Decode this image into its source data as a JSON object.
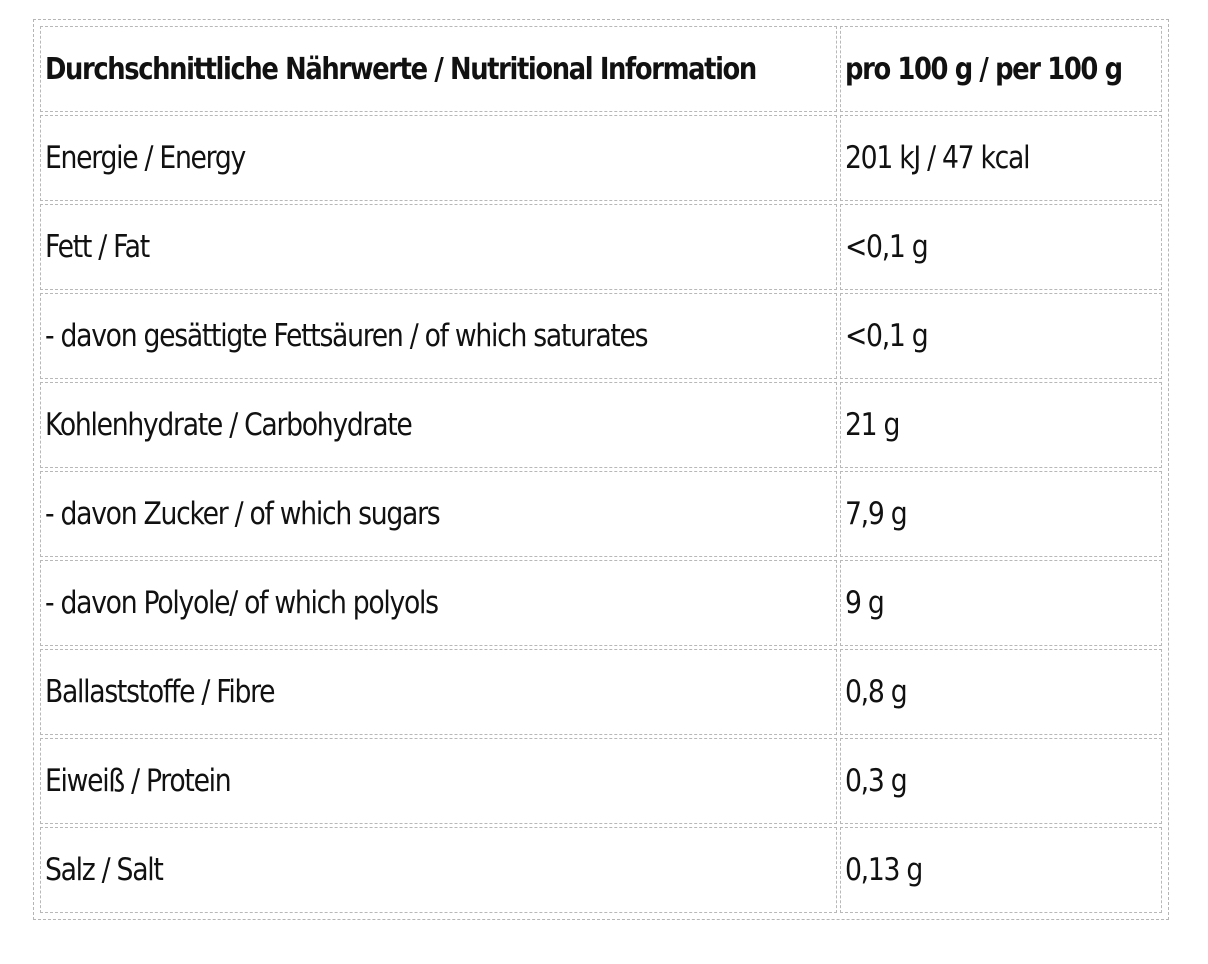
{
  "table": {
    "header": {
      "name": "Durchschnittliche Nährwerte / Nutritional Information",
      "value": "pro 100 g / per 100 g"
    },
    "rows": [
      {
        "name": "Energie / Energy",
        "value": "201 kJ / 47 kcal"
      },
      {
        "name": "Fett / Fat",
        "value": "<0,1 g"
      },
      {
        "name": "- davon gesättigte Fettsäuren / of which saturates",
        "value": "<0,1 g"
      },
      {
        "name": "Kohlenhydrate / Carbohydrate",
        "value": "21 g"
      },
      {
        "name": "- davon Zucker / of which sugars",
        "value": "7,9 g"
      },
      {
        "name": "- davon Polyole/ of which polyols",
        "value": "9 g"
      },
      {
        "name": "Ballaststoffe / Fibre",
        "value": "0,8 g"
      },
      {
        "name": "Eiweiß / Protein",
        "value": "0,3 g"
      },
      {
        "name": "Salz / Salt",
        "value": "0,13 g"
      }
    ]
  }
}
